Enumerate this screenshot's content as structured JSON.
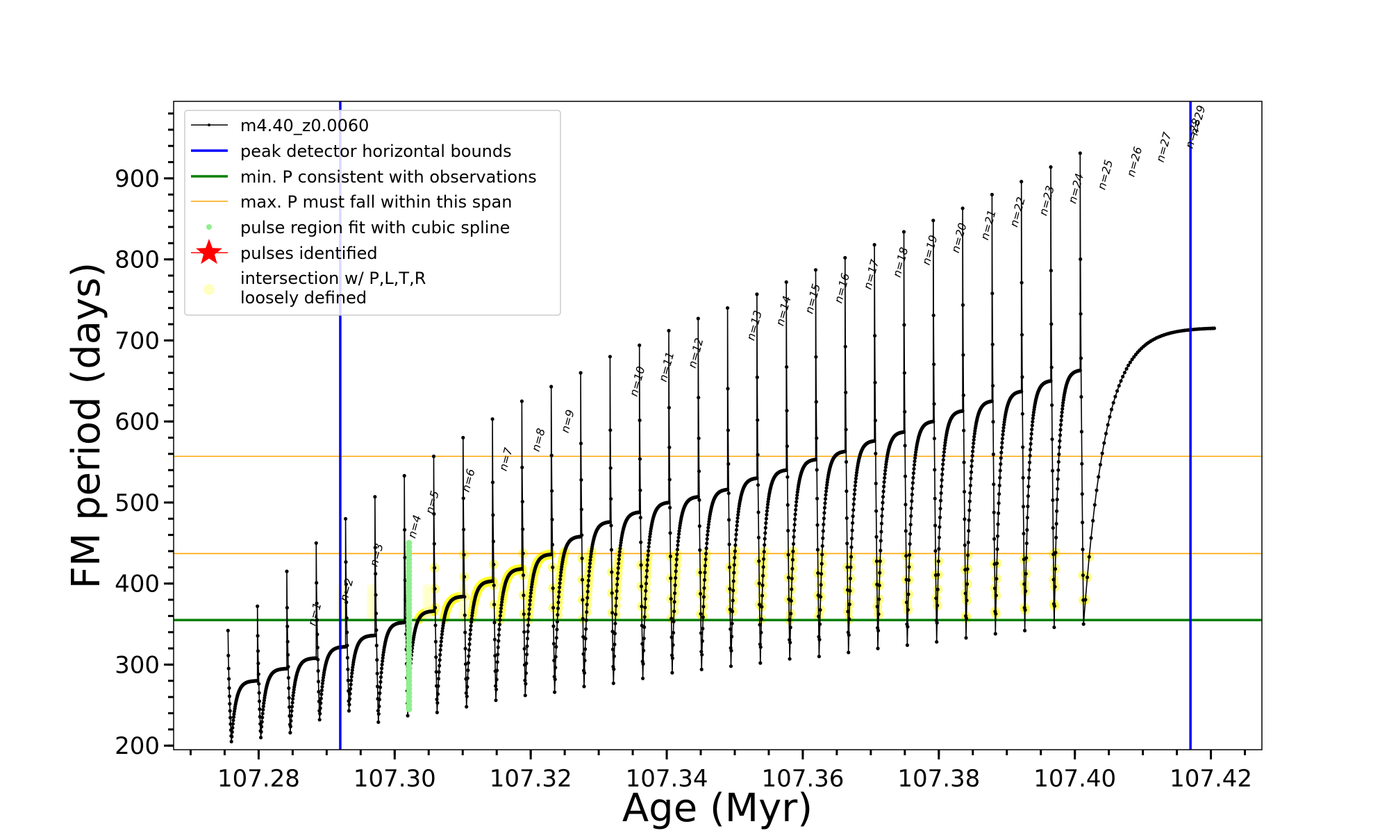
{
  "chart_data": {
    "type": "line",
    "xlabel": "Age (Myr)",
    "ylabel": "FM period (days)",
    "xlim": [
      107.2675,
      107.4275
    ],
    "ylim": [
      195,
      995
    ],
    "x_ticks": [
      107.28,
      107.3,
      107.32,
      107.34,
      107.36,
      107.38,
      107.4,
      107.42
    ],
    "x_tick_labels": [
      "107.28",
      "107.30",
      "107.32",
      "107.34",
      "107.36",
      "107.38",
      "107.40",
      "107.42"
    ],
    "y_ticks": [
      200,
      300,
      400,
      500,
      600,
      700,
      800,
      900
    ],
    "y_tick_labels": [
      "200",
      "300",
      "400",
      "500",
      "600",
      "700",
      "800",
      "900"
    ],
    "legend_position": "top-left",
    "legend": [
      {
        "label": "m4.40_z0.0060",
        "kind": "line-marker",
        "color": "#000000"
      },
      {
        "label": "peak detector horizontal bounds",
        "kind": "line",
        "color": "#0000ff"
      },
      {
        "label": "min. P consistent with observations",
        "kind": "line",
        "color": "#007f00"
      },
      {
        "label": "max. P must fall within this span",
        "kind": "line-thin",
        "color": "#ffa500"
      },
      {
        "label": "pulse region fit with cubic spline",
        "kind": "dot",
        "color": "#90ee90"
      },
      {
        "label": "pulses identified",
        "kind": "star",
        "color": "#ff0000"
      },
      {
        "label": "intersection w/ P,L,T,R",
        "label2": "loosely defined",
        "kind": "dot",
        "color": "#ffffc0"
      }
    ],
    "vlines": [
      107.292,
      107.417
    ],
    "hline_min_P": 355,
    "hlines_max_P_span": [
      437,
      557
    ],
    "cycle_start_age": 107.2755,
    "cycle_interval": 0.00432,
    "num_cycles": 29,
    "end_age": 107.4205,
    "end_period": 715,
    "pulse_peaks": [
      342,
      372,
      415,
      450,
      480,
      507,
      533,
      557,
      580,
      603,
      625,
      643,
      660,
      680,
      694,
      712,
      727,
      740,
      757,
      772,
      787,
      802,
      818,
      834,
      848,
      863,
      880,
      896,
      914,
      931,
      947
    ],
    "pulse_minima": [
      205,
      210,
      216,
      232,
      243,
      229,
      237,
      241,
      248,
      256,
      262,
      266,
      273,
      277,
      283,
      290,
      294,
      298,
      302,
      307,
      310,
      315,
      320,
      324,
      328,
      333,
      338,
      342,
      346,
      350,
      580
    ],
    "quiescent_maxima": [
      280,
      295,
      308,
      322,
      336,
      352,
      366,
      384,
      403,
      418,
      436,
      458,
      476,
      488,
      500,
      507,
      516,
      530,
      540,
      553,
      563,
      576,
      587,
      600,
      613,
      625,
      637,
      650,
      663,
      677,
      690,
      700
    ],
    "pulse_labels": [
      "n=1",
      "n=2",
      "n=3",
      "n=4",
      "n=5",
      "n=6",
      "n=7",
      "n=8",
      "n=9",
      "n=10",
      "n=11",
      "n=12",
      "n=13",
      "n=14",
      "n=15",
      "n=16",
      "n=17",
      "n=18",
      "n=19",
      "n=20",
      "n=21",
      "n=22",
      "n=23",
      "n=24",
      "n=25",
      "n=26",
      "n=27",
      "n=28",
      "n=29"
    ],
    "pulse_label_ages": [
      107.2875,
      107.2922,
      107.2966,
      107.3022,
      107.3048,
      107.3101,
      107.3156,
      107.3204,
      107.3247,
      107.3348,
      107.3391,
      107.3434,
      107.352,
      107.3563,
      107.3606,
      107.3649,
      107.3692,
      107.3735,
      107.3778,
      107.3821,
      107.3864,
      107.3907,
      107.395,
      107.3993,
      107.4036,
      107.4079,
      107.4122,
      107.4165,
      107.4172
    ],
    "pulse_label_periods": [
      342,
      372,
      415,
      450,
      480,
      507,
      533,
      557,
      580,
      625,
      643,
      660,
      694,
      712,
      727,
      740,
      757,
      772,
      787,
      802,
      818,
      834,
      848,
      863,
      880,
      896,
      914,
      931,
      947
    ],
    "spline_region_age": 107.3021,
    "spline_region_range": [
      245,
      450
    ],
    "yellow_band_range": [
      355,
      440
    ]
  }
}
